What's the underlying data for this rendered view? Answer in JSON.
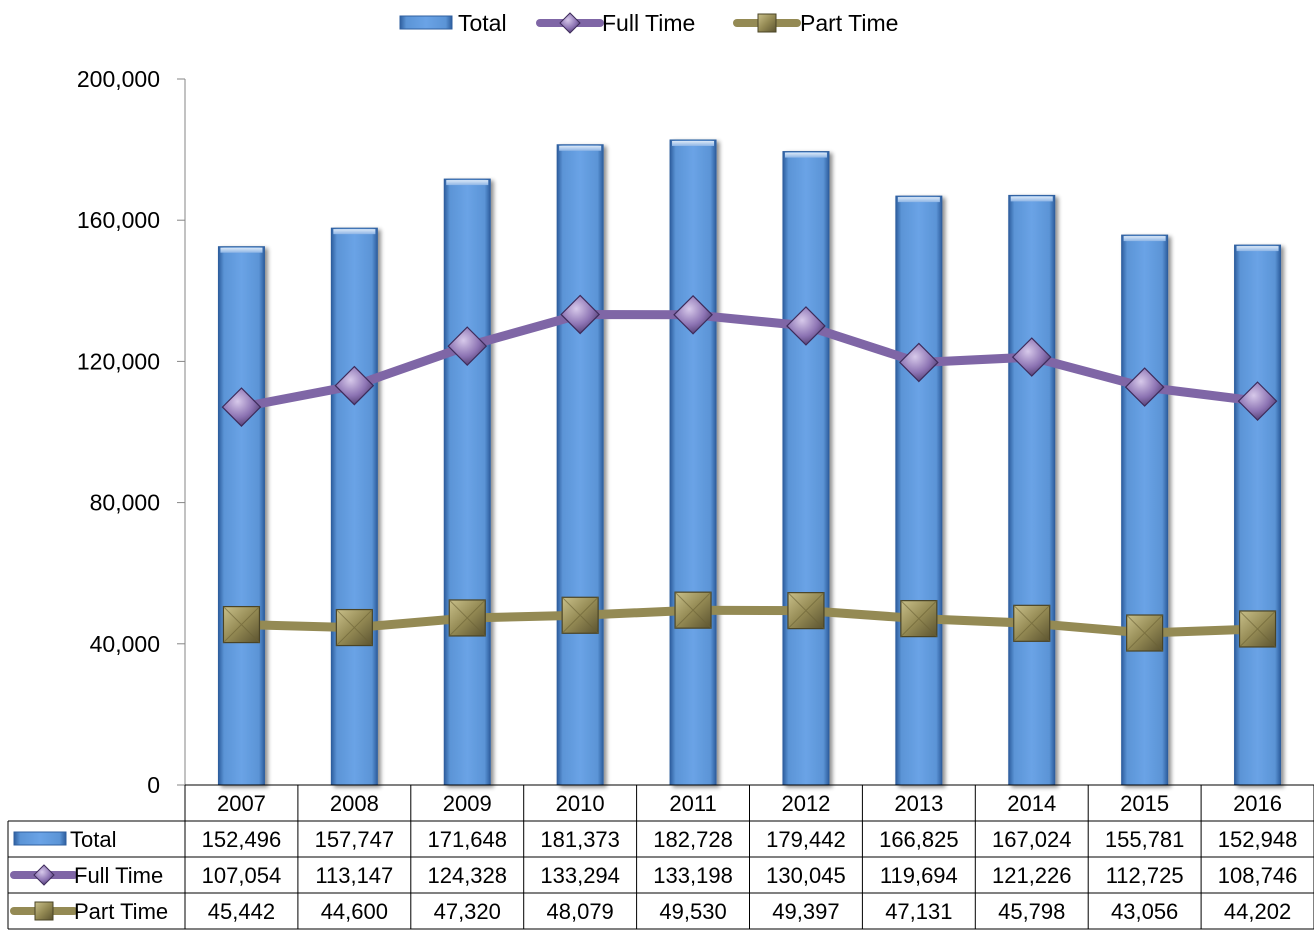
{
  "chart_data": {
    "type": "bar",
    "title": "",
    "xlabel": "",
    "ylabel": "",
    "ylim": [
      0,
      200000
    ],
    "yticks": [
      0,
      40000,
      80000,
      120000,
      160000,
      200000
    ],
    "ytick_labels": [
      "0",
      "40,000",
      "80,000",
      "120,000",
      "160,000",
      "200,000"
    ],
    "categories": [
      "2007",
      "2008",
      "2009",
      "2010",
      "2011",
      "2012",
      "2013",
      "2014",
      "2015",
      "2016"
    ],
    "legend_position": "top",
    "grid": false,
    "data_table": true,
    "series": [
      {
        "name": "Total",
        "type": "bar",
        "color": "#5b94d6",
        "values": [
          152496,
          157747,
          171648,
          181373,
          182728,
          179442,
          166825,
          167024,
          155781,
          152948
        ],
        "labels": [
          "152,496",
          "157,747",
          "171,648",
          "181,373",
          "182,728",
          "179,442",
          "166,825",
          "167,024",
          "155,781",
          "152,948"
        ]
      },
      {
        "name": "Full Time",
        "type": "line",
        "marker": "diamond",
        "color": "#7f66a6",
        "values": [
          107054,
          113147,
          124328,
          133294,
          133198,
          130045,
          119694,
          121226,
          112725,
          108746
        ],
        "labels": [
          "107,054",
          "113,147",
          "124,328",
          "133,294",
          "133,198",
          "130,045",
          "119,694",
          "121,226",
          "112,725",
          "108,746"
        ]
      },
      {
        "name": "Part Time",
        "type": "line",
        "marker": "square",
        "color": "#948a54",
        "values": [
          45442,
          44600,
          47320,
          48079,
          49530,
          49397,
          47131,
          45798,
          43056,
          44202
        ],
        "labels": [
          "45,442",
          "44,600",
          "47,320",
          "48,079",
          "49,530",
          "49,397",
          "47,131",
          "45,798",
          "43,056",
          "44,202"
        ]
      }
    ]
  }
}
